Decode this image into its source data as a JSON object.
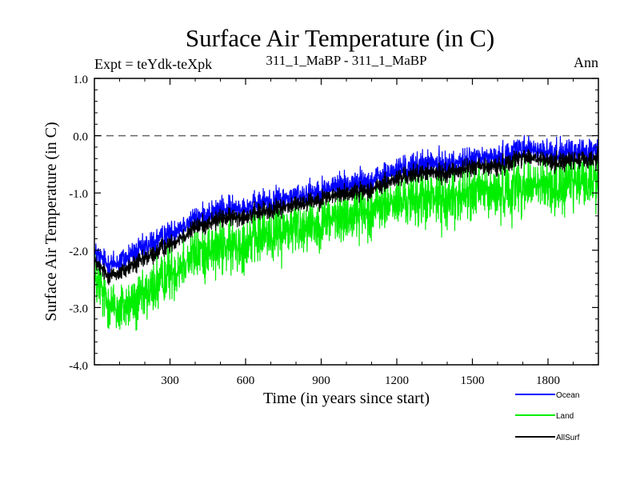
{
  "chart_data": {
    "type": "line",
    "title": "Surface Air Temperature (in C)",
    "subtitle_left": "Expt = teYdk-teXpk",
    "subtitle_center": "311_1_MaBP - 311_1_MaBP",
    "subtitle_right": "Ann",
    "xlabel": "Time (in years since start)",
    "ylabel": "Surface Air Temperature (in C)",
    "xlim": [
      0,
      2000
    ],
    "ylim": [
      -4.0,
      1.0
    ],
    "xticks": [
      {
        "value": 300,
        "label": "300"
      },
      {
        "value": 600,
        "label": "600"
      },
      {
        "value": 900,
        "label": "900"
      },
      {
        "value": 1200,
        "label": "1200"
      },
      {
        "value": 1500,
        "label": "1500"
      },
      {
        "value": 1800,
        "label": "1800"
      }
    ],
    "yticks": [
      {
        "value": 1.0,
        "label": "1.0"
      },
      {
        "value": 0.0,
        "label": "0.0"
      },
      {
        "value": -1.0,
        "label": "-1.0"
      },
      {
        "value": -2.0,
        "label": "-2.0"
      },
      {
        "value": -3.0,
        "label": "-3.0"
      },
      {
        "value": -4.0,
        "label": "-4.0"
      }
    ],
    "reference_line": {
      "y": 0.0,
      "style": "dashed"
    },
    "legend_position": "bottom-right",
    "series": [
      {
        "name": "Ocean",
        "color": "#0000ff",
        "noise": 0.14,
        "x": [
          0,
          50,
          100,
          200,
          300,
          400,
          500,
          600,
          700,
          800,
          900,
          1000,
          1100,
          1200,
          1300,
          1400,
          1500,
          1600,
          1700,
          1800,
          1900,
          2000
        ],
        "values": [
          -2.05,
          -2.25,
          -2.2,
          -1.95,
          -1.7,
          -1.45,
          -1.3,
          -1.25,
          -1.15,
          -1.05,
          -0.95,
          -0.85,
          -0.8,
          -0.6,
          -0.5,
          -0.5,
          -0.4,
          -0.4,
          -0.2,
          -0.3,
          -0.3,
          -0.25
        ]
      },
      {
        "name": "Land",
        "color": "#00ee00",
        "noise": 0.3,
        "x": [
          0,
          50,
          100,
          200,
          300,
          400,
          500,
          600,
          700,
          800,
          900,
          1000,
          1100,
          1200,
          1300,
          1400,
          1500,
          1600,
          1700,
          1800,
          1900,
          2000
        ],
        "values": [
          -2.55,
          -2.9,
          -3.05,
          -2.8,
          -2.4,
          -2.05,
          -1.95,
          -1.85,
          -1.7,
          -1.6,
          -1.5,
          -1.4,
          -1.3,
          -1.15,
          -1.1,
          -1.1,
          -1.0,
          -1.0,
          -0.85,
          -0.9,
          -0.85,
          -0.75
        ]
      },
      {
        "name": "AllSurf",
        "color": "#000000",
        "noise": 0.1,
        "x": [
          0,
          50,
          100,
          200,
          300,
          400,
          500,
          600,
          700,
          800,
          900,
          1000,
          1100,
          1200,
          1300,
          1400,
          1500,
          1600,
          1700,
          1800,
          1900,
          2000
        ],
        "values": [
          -2.2,
          -2.45,
          -2.4,
          -2.15,
          -1.9,
          -1.6,
          -1.45,
          -1.4,
          -1.3,
          -1.2,
          -1.1,
          -1.0,
          -0.95,
          -0.75,
          -0.65,
          -0.65,
          -0.55,
          -0.55,
          -0.35,
          -0.45,
          -0.45,
          -0.4
        ]
      }
    ]
  }
}
